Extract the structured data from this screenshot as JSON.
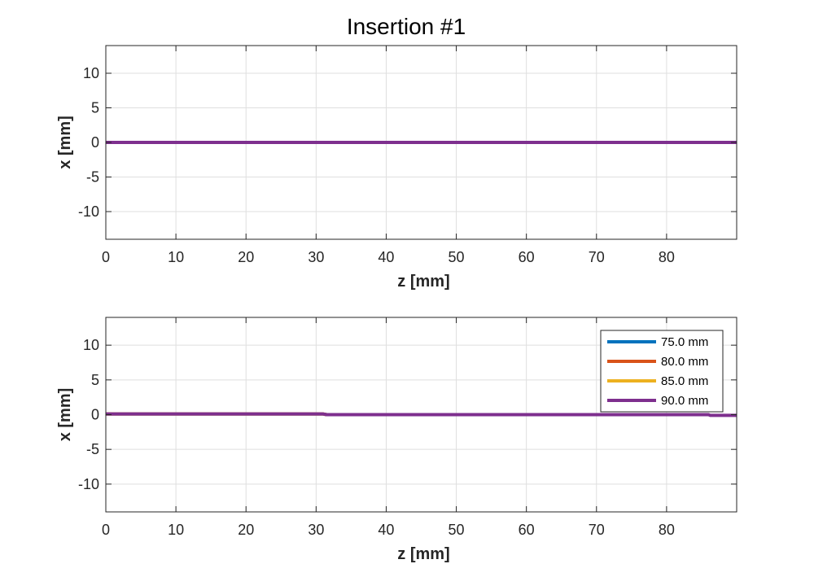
{
  "figure": {
    "title": "Insertion #1"
  },
  "chart_data": [
    {
      "type": "line",
      "title": "Insertion #1",
      "xlabel": "z [mm]",
      "ylabel": "x [mm]",
      "xlim": [
        0,
        90
      ],
      "ylim": [
        -14,
        14
      ],
      "xticks": [
        0,
        10,
        20,
        30,
        40,
        50,
        60,
        70,
        80
      ],
      "yticks": [
        10,
        5,
        0,
        -5,
        -10
      ],
      "grid": true,
      "legend": null,
      "series": [
        {
          "name": "75.0 mm",
          "color": "#0072BD",
          "points": [
            [
              0,
              0
            ],
            [
              75,
              0
            ]
          ]
        },
        {
          "name": "80.0 mm",
          "color": "#D95319",
          "points": [
            [
              0,
              0
            ],
            [
              80,
              0
            ]
          ]
        },
        {
          "name": "85.0 mm",
          "color": "#EDB120",
          "points": [
            [
              0,
              0
            ],
            [
              85,
              0
            ]
          ]
        },
        {
          "name": "90.0 mm",
          "color": "#7E2F8E",
          "points": [
            [
              0,
              0
            ],
            [
              90,
              0
            ]
          ]
        }
      ]
    },
    {
      "type": "line",
      "title": "",
      "xlabel": "z [mm]",
      "ylabel": "x [mm]",
      "xlim": [
        0,
        90
      ],
      "ylim": [
        -14,
        14
      ],
      "xticks": [
        0,
        10,
        20,
        30,
        40,
        50,
        60,
        70,
        80
      ],
      "yticks": [
        10,
        5,
        0,
        -5,
        -10
      ],
      "grid": true,
      "legend": "top-right",
      "series": [
        {
          "name": "75.0 mm",
          "color": "#0072BD",
          "points": [
            [
              0,
              0.1
            ],
            [
              31,
              0.1
            ],
            [
              31.5,
              0
            ],
            [
              75,
              0
            ]
          ]
        },
        {
          "name": "80.0 mm",
          "color": "#D95319",
          "points": [
            [
              0,
              0.1
            ],
            [
              31,
              0.1
            ],
            [
              31.5,
              0
            ],
            [
              80,
              0
            ]
          ]
        },
        {
          "name": "85.0 mm",
          "color": "#EDB120",
          "points": [
            [
              0,
              0.1
            ],
            [
              31,
              0.1
            ],
            [
              31.5,
              0
            ],
            [
              85,
              0
            ]
          ]
        },
        {
          "name": "90.0 mm",
          "color": "#7E2F8E",
          "points": [
            [
              0,
              0.1
            ],
            [
              31,
              0.1
            ],
            [
              31.5,
              0
            ],
            [
              86,
              0
            ],
            [
              86.2,
              -0.1
            ],
            [
              90,
              -0.1
            ]
          ]
        }
      ]
    }
  ]
}
